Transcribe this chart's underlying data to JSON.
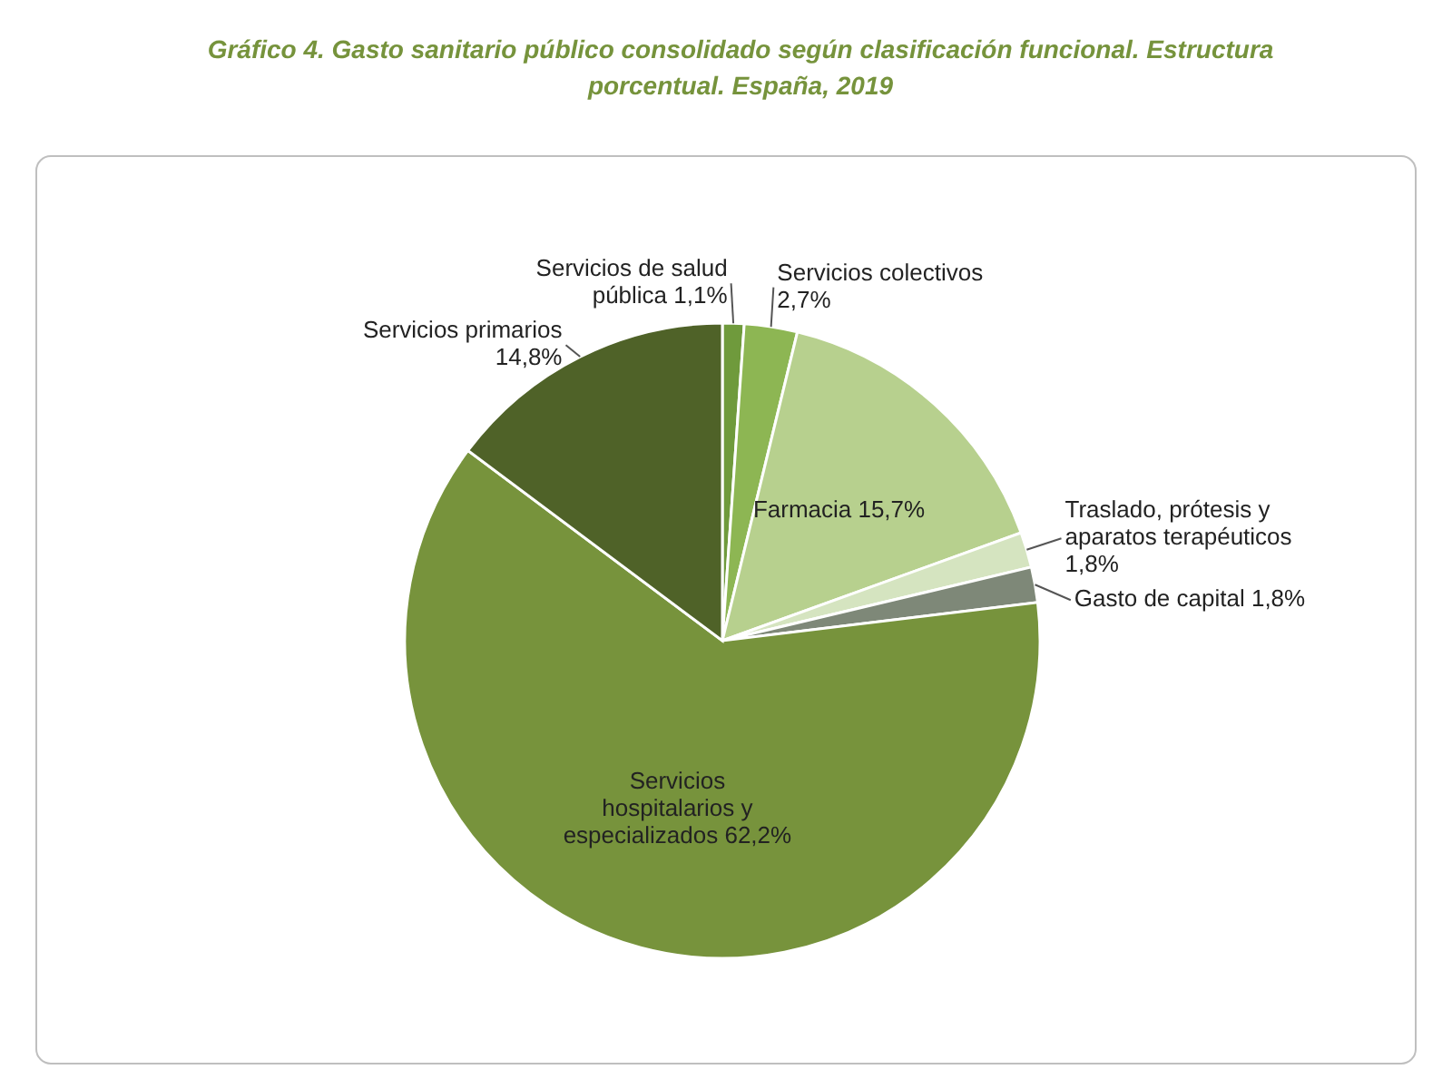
{
  "chart_data": {
    "type": "pie",
    "title": "Gráfico 4. Gasto sanitario público consolidado según clasificación funcional. Estructura porcentual. España, 2019",
    "categories": [
      "Servicios de salud pública",
      "Servicios colectivos",
      "Farmacia",
      "Traslado, prótesis y aparatos terapéuticos",
      "Gasto de capital",
      "Servicios hospitalarios y especializados",
      "Servicios primarios"
    ],
    "values": [
      1.1,
      2.7,
      15.7,
      1.8,
      1.8,
      62.2,
      14.8
    ],
    "value_labels": [
      "1,1%",
      "2,7%",
      "15,7%",
      "1,8%",
      "1,8%",
      "62,2%",
      "14,8%"
    ],
    "colors": [
      "#6f9a3c",
      "#8db653",
      "#b7d08e",
      "#d5e4c0",
      "#7e8878",
      "#77933c",
      "#4f6228"
    ]
  }
}
